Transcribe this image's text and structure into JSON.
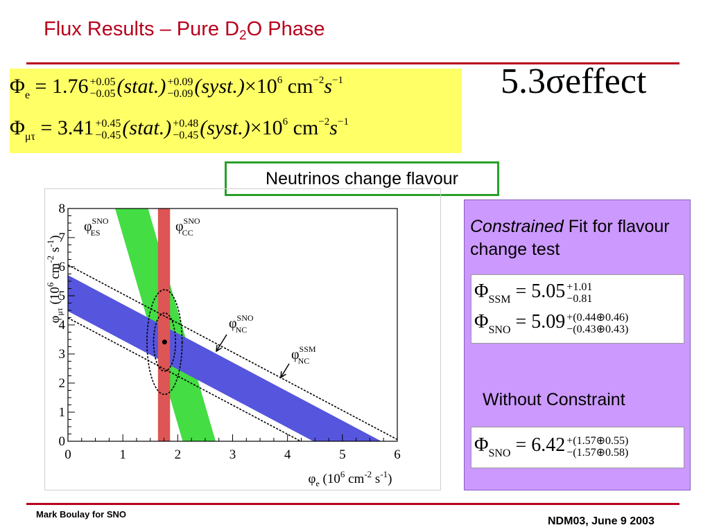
{
  "slide": {
    "title": "Flux Results – Pure D",
    "title_sub": "2",
    "title_end": "O Phase",
    "big_effect": "5.3σeffect",
    "banner": "Neutrinos change flavour",
    "footer_left": "Mark Boulay for SNO",
    "footer_right": "NDM03, June 9 2003"
  },
  "flux_equations": [
    {
      "symbol": "Φ",
      "sub": "e",
      "value": "= 1.76",
      "stat_up": "+0.05",
      "stat_dn": "−0.05",
      "stat": "(stat.)",
      "syst_up": "+0.09",
      "syst_dn": "−0.09",
      "syst": "(syst.)",
      "times": "×10",
      "exp": "6",
      "units": " cm",
      "units_exp": "−2",
      "s": "s",
      "s_exp": "−1"
    },
    {
      "symbol": "Φ",
      "sub": "μτ",
      "value": "= 3.41",
      "stat_up": "+0.45",
      "stat_dn": "−0.45",
      "stat": "(stat.)",
      "syst_up": "+0.48",
      "syst_dn": "−0.45",
      "syst": "(syst.)",
      "times": "×10",
      "exp": "6",
      "units": " cm",
      "units_exp": "−2",
      "s": "s",
      "s_exp": "−1"
    }
  ],
  "panel": {
    "constrained": "Constrained",
    "constrained_rest": " Fit for flavour change test",
    "ssm": {
      "symbol": "Φ",
      "sub": "SSM",
      "value": "= 5.05",
      "up": "+1.01",
      "dn": "−0.81"
    },
    "sno": {
      "symbol": "Φ",
      "sub": "SNO",
      "value": "= 5.09",
      "up": "+(0.44⊕0.46)",
      "dn": "−(0.43⊕0.43)"
    },
    "without": "Without Constraint",
    "sno_free": {
      "symbol": "Φ",
      "sub": "SNO",
      "value": "= 6.42",
      "up": "+(1.57⊕0.55)",
      "dn": "−(1.57⊕0.58)"
    }
  },
  "chart_data": {
    "type": "band-plot",
    "xlabel": {
      "phi": "φ",
      "sub": "e",
      "rest": " (10",
      "sup": "6",
      "rest2": " cm",
      "sup2": "-2",
      "rest3": " s",
      "sup3": "-1",
      "rest4": ")"
    },
    "ylabel": {
      "phi": "φ",
      "sub": "μτ",
      "rest": " (10",
      "sup": "6",
      "rest2": " cm",
      "sup2": "-2",
      "rest3": " s",
      "sup3": "-1",
      "rest4": ")"
    },
    "xlim": [
      0,
      6
    ],
    "ylim": [
      0,
      8
    ],
    "x_ticks": [
      "0",
      "1",
      "2",
      "3",
      "4",
      "5",
      "6"
    ],
    "y_ticks": [
      "0",
      "1",
      "2",
      "3",
      "4",
      "5",
      "6",
      "7",
      "8"
    ],
    "colors": {
      "es": "#44dd44",
      "cc": "#dd5555",
      "nc": "#5555dd"
    },
    "bands": {
      "cc": {
        "x_min": 1.64,
        "x_max": 1.86,
        "label": "φ",
        "label_sup": "SNO",
        "label_sub": "CC"
      },
      "es": {
        "center_sum": 2.39,
        "half_width": 0.3,
        "slope": 6.5,
        "label": "φ",
        "label_sup": "SNO",
        "label_sub": "ES"
      },
      "nc": {
        "center_sum": 5.09,
        "half_width": 0.62,
        "label": "φ",
        "label_sup": "SNO",
        "label_sub": "NC"
      },
      "ssm": {
        "lower_sum": 4.24,
        "upper_sum": 6.06,
        "label": "φ",
        "label_sup": "SSM",
        "label_sub": "NC"
      }
    },
    "best_fit": {
      "x": 1.76,
      "y": 3.41
    },
    "contours": [
      {
        "cx": 1.76,
        "cy": 3.41,
        "rx": 0.2,
        "ry": 1.0
      },
      {
        "cx": 1.76,
        "cy": 3.41,
        "rx": 0.32,
        "ry": 1.8
      }
    ]
  }
}
